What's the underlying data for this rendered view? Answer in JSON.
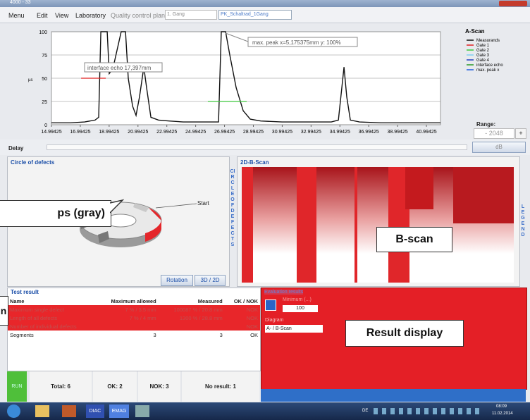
{
  "window": {
    "title": "4000 - 33"
  },
  "menu": {
    "items": [
      "Menu",
      "Edit",
      "View",
      "Laboratory"
    ],
    "qc_label": "Quality control plan:",
    "qc_value": "1. Gang",
    "qc_plan": "PK_Schaltrad_1Gang"
  },
  "a_scan": {
    "type": "line",
    "legend_title": "A-Scan",
    "y_label": "µs",
    "annotations": [
      "interface echo 17,397mm",
      "max. peak x=5,175375mm  y: 100%"
    ],
    "xlim": [
      14.99425,
      41.97
    ],
    "ylim": [
      0,
      100
    ],
    "xticks": [
      14.99425,
      16.99425,
      18.99425,
      20.99425,
      22.99425,
      24.99425,
      26.99425,
      28.99425,
      30.99425,
      32.99425,
      34.99425,
      36.99425,
      38.99425,
      40.99425
    ],
    "yticks": [
      0,
      25,
      50,
      75,
      100
    ],
    "series": [
      {
        "name": "Measurands",
        "color": "#111111",
        "x": [
          14.99,
          16.31,
          17.29,
          18.02,
          18.27,
          18.42,
          18.86,
          19.0,
          19.25,
          19.83,
          20.13,
          20.32,
          20.62,
          20.86,
          21.1,
          21.4,
          21.59,
          21.89,
          22.42,
          23.16,
          24.13,
          25.6,
          26.58,
          26.77,
          27.07,
          27.36,
          27.8,
          28.29,
          28.78,
          29.51,
          30.98,
          32.93,
          34.4,
          34.89,
          35.13,
          35.28,
          35.47,
          35.72,
          36.35,
          37.82,
          39.77,
          41.97
        ],
        "values": [
          2,
          2,
          3,
          5,
          8,
          100,
          100,
          55,
          60,
          100,
          100,
          50,
          20,
          10,
          30,
          62,
          40,
          8,
          5,
          4,
          3,
          3,
          3,
          100,
          100,
          75,
          40,
          15,
          6,
          4,
          3,
          3,
          3,
          5,
          40,
          62,
          30,
          5,
          3,
          2,
          2,
          2
        ]
      },
      {
        "name": "Gate 1",
        "color": "#e02020",
        "x": [
          17.05,
          18.76
        ],
        "values": [
          50,
          50
        ]
      },
      {
        "name": "Gate 2",
        "color": "#3cc83c",
        "x": [
          25.84,
          28.53
        ],
        "values": [
          25,
          25
        ]
      }
    ],
    "legend_extra": [
      {
        "name": "Gate 3",
        "color": "#7fd0f0"
      },
      {
        "name": "Gate 4",
        "color": "#2040c0"
      },
      {
        "name": "interface echo",
        "color": "#2a9a2a"
      },
      {
        "name": "max. peak x",
        "color": "#2060e0"
      }
    ]
  },
  "controls": {
    "range_label": "Range:",
    "range_value": "- 2048",
    "plus": "+",
    "delay": "Delay",
    "db": "dB"
  },
  "circle": {
    "title": "Circle of defects",
    "vertical": "CIRCLE OF DEFECTS",
    "start": "Start",
    "rotation": "Rotation",
    "toggle": "3D / 2D"
  },
  "bscan": {
    "title": "2D-B-Scan",
    "vertical": "LEGEND"
  },
  "test_result": {
    "title": "Test result",
    "header": [
      "Name",
      "Maximum allowed",
      "Measured",
      "OK / NOK"
    ],
    "rows": [
      [
        "Maximum single defect",
        "7 % / 3.5 mm",
        "100087 % / 20.8 mm",
        "NOK"
      ],
      [
        "Length of all defects",
        "7 % / 4 mm",
        "1300 % / 28.8 mm",
        "NOK"
      ],
      [
        "Number of individual defects",
        "",
        "",
        "NOK"
      ],
      [
        "Segments",
        "3",
        "3",
        "OK"
      ]
    ]
  },
  "evaluation": {
    "title": "Evaluation results",
    "min_label": "Minimum (...)",
    "min_value": "100",
    "diagram_label": "Diagram",
    "diagram_value": "A- / B-Scan"
  },
  "status": {
    "state": "RUN",
    "total": "Total: 6",
    "ok": "OK: 2",
    "nok": "NOK: 3",
    "no_result": "No result: 1"
  },
  "callouts": {
    "gray": "ps (gray)",
    "bscan": "B-scan",
    "result": "Result display",
    "left": "n"
  },
  "taskbar": {
    "apps": [
      "DIAC",
      "EMAG"
    ],
    "lang": "DE",
    "time": "08:09",
    "date": "11.02.2014"
  }
}
